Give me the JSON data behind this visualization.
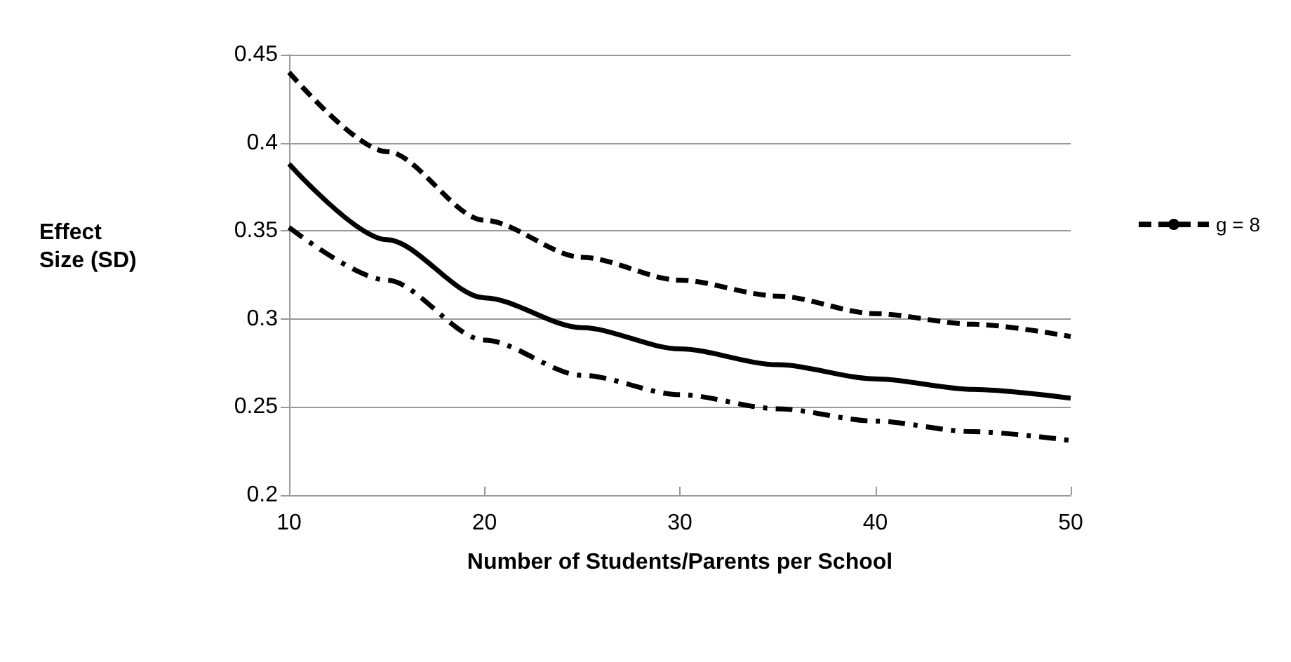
{
  "chart_data": {
    "type": "line",
    "xlabel": "Number of Students/Parents per School",
    "ylabel": "Effect Size (SD)",
    "x": [
      10,
      15,
      20,
      25,
      30,
      35,
      40,
      45,
      50
    ],
    "series": [
      {
        "name": "g = 8",
        "color": "#000000",
        "line_style": "dashed",
        "values": [
          0.44,
          0.395,
          0.356,
          0.335,
          0.322,
          0.313,
          0.303,
          0.297,
          0.29
        ]
      },
      {
        "color": "#000000",
        "line_style": "solid",
        "values": [
          0.388,
          0.345,
          0.312,
          0.295,
          0.283,
          0.274,
          0.266,
          0.26,
          0.255
        ]
      },
      {
        "color": "#000000",
        "line_style": "dashdot",
        "values": [
          0.352,
          0.322,
          0.288,
          0.268,
          0.257,
          0.249,
          0.242,
          0.236,
          0.231
        ]
      }
    ],
    "xlim": [
      10,
      50
    ],
    "xticks": [
      10,
      20,
      30,
      40,
      50
    ],
    "ylim": [
      0.2,
      0.45
    ],
    "yticks": [
      0.2,
      0.25,
      0.3,
      0.35,
      0.4,
      0.45
    ],
    "grid": "y",
    "legend": "right",
    "marker": "none"
  }
}
